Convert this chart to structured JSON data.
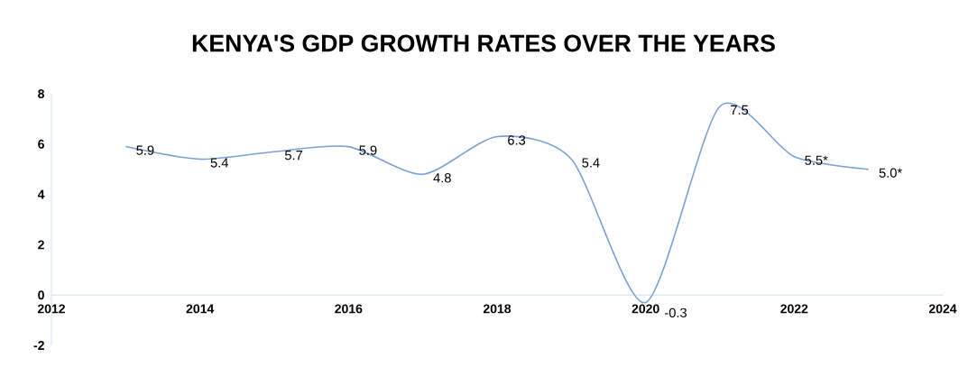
{
  "chart_data": {
    "type": "line",
    "title": "KENYA'S GDP GROWTH RATES OVER THE YEARS",
    "x": [
      2013,
      2014,
      2015,
      2016,
      2017,
      2018,
      2019,
      2020,
      2021,
      2022,
      2023
    ],
    "values": [
      5.9,
      5.4,
      5.7,
      5.9,
      4.8,
      6.3,
      5.4,
      -0.3,
      7.5,
      5.5,
      5.0
    ],
    "value_labels": [
      "5.9",
      "5.4",
      "5.7",
      "5.9",
      "4.8",
      "6.3",
      "5.4",
      "-0.3",
      "7.5",
      "5.5*",
      "5.0*"
    ],
    "color": "#7ba0d4",
    "xlim": [
      2012,
      2024
    ],
    "ylim": [
      -2,
      8
    ],
    "xticks": [
      2012,
      2014,
      2016,
      2018,
      2020,
      2022,
      2024
    ],
    "yticks": [
      -2,
      0,
      2,
      4,
      6,
      8
    ]
  }
}
